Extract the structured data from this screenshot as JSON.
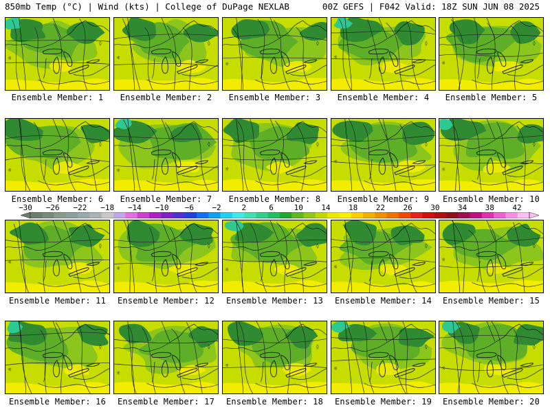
{
  "header": {
    "left_title": "850mb Temp (°C) | Wind (kts) | College of DuPage NEXLAB",
    "right_title": "00Z GEFS | F042 Valid: 18Z SUN JUN 08 2025"
  },
  "members": [
    {
      "label": "Ensemble Member: 1",
      "variant": 1
    },
    {
      "label": "Ensemble Member: 2",
      "variant": 2
    },
    {
      "label": "Ensemble Member: 3",
      "variant": 3
    },
    {
      "label": "Ensemble Member: 4",
      "variant": 4
    },
    {
      "label": "Ensemble Member: 5",
      "variant": 5
    },
    {
      "label": "Ensemble Member: 6",
      "variant": 6
    },
    {
      "label": "Ensemble Member: 7",
      "variant": 7
    },
    {
      "label": "Ensemble Member: 8",
      "variant": 8
    },
    {
      "label": "Ensemble Member: 9",
      "variant": 9
    },
    {
      "label": "Ensemble Member: 10",
      "variant": 10
    },
    {
      "label": "Ensemble Member: 11",
      "variant": 11
    },
    {
      "label": "Ensemble Member: 12",
      "variant": 12
    },
    {
      "label": "Ensemble Member: 13",
      "variant": 13
    },
    {
      "label": "Ensemble Member: 14",
      "variant": 14
    },
    {
      "label": "Ensemble Member: 15",
      "variant": 15
    },
    {
      "label": "Ensemble Member: 16",
      "variant": 16
    },
    {
      "label": "Ensemble Member: 17",
      "variant": 17
    },
    {
      "label": "Ensemble Member: 18",
      "variant": 18
    },
    {
      "label": "Ensemble Member: 19",
      "variant": 19
    },
    {
      "label": "Ensemble Member: 20",
      "variant": 20
    }
  ],
  "colorbar": {
    "labels": [
      "−30",
      "−26",
      "−22",
      "−18",
      "−14",
      "−10",
      "−6",
      "−2",
      "2",
      "6",
      "10",
      "14",
      "18",
      "22",
      "26",
      "30",
      "34",
      "38",
      "42"
    ],
    "colors": [
      "#6e7e6e",
      "#7a8a7a",
      "#8a9a8a",
      "#8e9e9e",
      "#9aaaaa",
      "#aab4b4",
      "#c8c8c8",
      "#c0a8e8",
      "#e070e0",
      "#d040d0",
      "#b020c8",
      "#8020c8",
      "#5030d0",
      "#2040e0",
      "#1070f0",
      "#10a0f0",
      "#20d0f0",
      "#40e8e8",
      "#40e0b0",
      "#30d088",
      "#20c060",
      "#20a830",
      "#60b820",
      "#90c818",
      "#c0d800",
      "#e8e800",
      "#f8f000",
      "#f8d000",
      "#f0b000",
      "#f09000",
      "#f07000",
      "#f04800",
      "#e82020",
      "#d01010",
      "#b01010",
      "#901020",
      "#a01050",
      "#c01080",
      "#e030b0",
      "#f060d0",
      "#f890e0",
      "#f8c0f0"
    ],
    "low_end_color": "#6e7e6e",
    "high_end_color": "#f8c0f0"
  },
  "legend_colors": {
    "dark_green": "#2f8a32",
    "mid_green": "#5eae28",
    "light_green": "#8cc51c",
    "yellow_green": "#c7dd00",
    "yellow": "#f2ec00",
    "teal": "#2ec892",
    "contour": "#222222",
    "coast": "#000000"
  }
}
